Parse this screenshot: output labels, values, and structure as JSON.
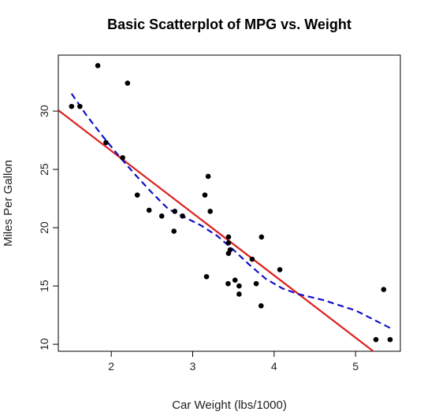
{
  "chart_data": {
    "type": "scatter",
    "title": "Basic Scatterplot of MPG vs. Weight",
    "xlabel": "Car Weight (lbs/1000)",
    "ylabel": "Miles Per Gallon",
    "xlim": [
      1.35,
      5.55
    ],
    "ylim": [
      9.4,
      34.8
    ],
    "xticks": [
      2,
      3,
      4,
      5
    ],
    "yticks": [
      10,
      15,
      20,
      25,
      30
    ],
    "grid": false,
    "points": [
      [
        1.513,
        30.4
      ],
      [
        1.615,
        30.4
      ],
      [
        1.835,
        33.9
      ],
      [
        1.935,
        27.3
      ],
      [
        2.14,
        26.0
      ],
      [
        2.2,
        32.4
      ],
      [
        2.32,
        22.8
      ],
      [
        2.465,
        21.5
      ],
      [
        2.62,
        21.0
      ],
      [
        2.77,
        19.7
      ],
      [
        2.78,
        21.4
      ],
      [
        2.875,
        21.0
      ],
      [
        3.15,
        22.8
      ],
      [
        3.17,
        15.8
      ],
      [
        3.19,
        24.4
      ],
      [
        3.215,
        21.4
      ],
      [
        3.435,
        15.2
      ],
      [
        3.44,
        18.7
      ],
      [
        3.44,
        19.2
      ],
      [
        3.44,
        17.8
      ],
      [
        3.46,
        18.1
      ],
      [
        3.52,
        15.5
      ],
      [
        3.57,
        14.3
      ],
      [
        3.57,
        15.0
      ],
      [
        3.73,
        17.3
      ],
      [
        3.78,
        15.2
      ],
      [
        3.84,
        13.3
      ],
      [
        3.845,
        19.2
      ],
      [
        4.07,
        16.4
      ],
      [
        5.25,
        10.4
      ],
      [
        5.345,
        14.7
      ],
      [
        5.424,
        10.4
      ]
    ],
    "regression_line": {
      "intercept": 37.285,
      "slope": -5.344,
      "color": "#dd1f1f"
    },
    "lowess_curve": {
      "color": "#1010c8",
      "x": [
        1.513,
        1.7,
        1.9,
        2.1,
        2.3,
        2.5,
        2.7,
        2.9,
        3.1,
        3.3,
        3.5,
        3.7,
        3.9,
        4.1,
        4.3,
        4.6,
        5.0,
        5.424
      ],
      "y": [
        31.5,
        29.6,
        27.8,
        26.1,
        24.5,
        23.0,
        21.6,
        20.9,
        20.2,
        19.3,
        18.1,
        16.8,
        15.6,
        14.8,
        14.3,
        13.8,
        12.9,
        11.4
      ]
    },
    "point_color": "#000000"
  }
}
